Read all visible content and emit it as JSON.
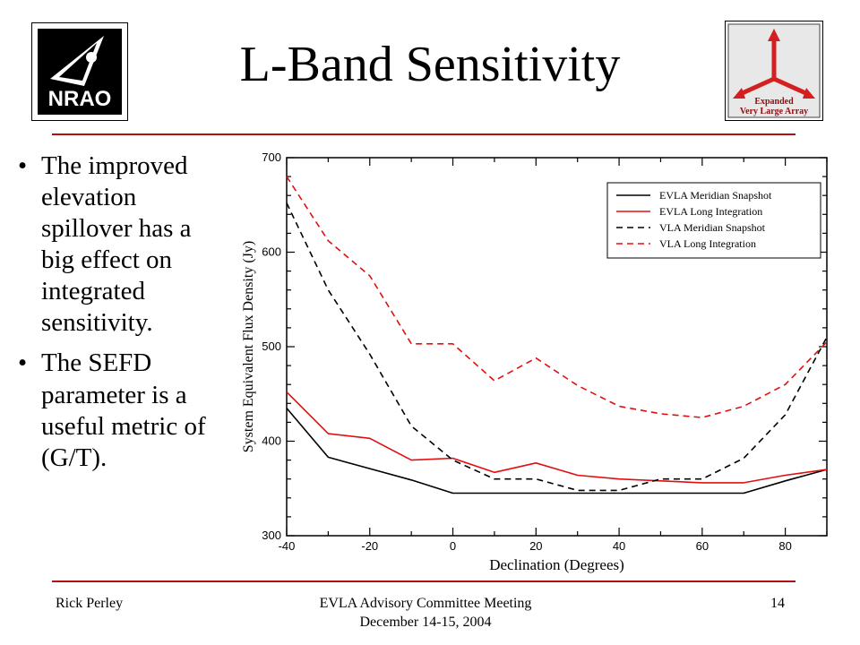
{
  "slide": {
    "title": "L-Band Sensitivity",
    "bullets": [
      "The improved elevation spillover has a big effect on integrated sensitivity.",
      "The SEFD parameter is a useful metric of (G/T)."
    ],
    "bullet_glyph": "•",
    "footer": {
      "author": "Rick Perley",
      "meeting_line1": "EVLA Advisory Committee Meeting",
      "meeting_line2": "December 14-15, 2004",
      "page": "14"
    },
    "logos": {
      "left_text": "NRAO",
      "right_line1": "Expanded",
      "right_line2": "Very Large Array"
    },
    "colors": {
      "rule": "#b01010",
      "black_series": "#000000",
      "red_series": "#e01010"
    }
  },
  "chart_data": {
    "type": "line",
    "title": "",
    "xlabel": "Declination (Degrees)",
    "ylabel": "System Equivalent Flux Density (Jy)",
    "xlim": [
      -40,
      90
    ],
    "ylim": [
      300,
      700
    ],
    "xticks": [
      -40,
      -20,
      0,
      20,
      40,
      60,
      80
    ],
    "yticks": [
      300,
      400,
      500,
      600,
      700
    ],
    "grid": false,
    "legend": "top-right",
    "series": [
      {
        "name": "EVLA Meridian Snapshot",
        "color": "#000000",
        "dash": "solid",
        "x": [
          -40,
          -30,
          -20,
          -10,
          0,
          10,
          20,
          30,
          40,
          50,
          60,
          70,
          80,
          90
        ],
        "y": [
          435,
          383,
          371,
          359,
          345,
          345,
          345,
          345,
          345,
          345,
          345,
          345,
          358,
          370
        ]
      },
      {
        "name": "EVLA Long Integration",
        "color": "#e01010",
        "dash": "solid",
        "x": [
          -40,
          -30,
          -20,
          -10,
          0,
          10,
          20,
          30,
          40,
          50,
          60,
          70,
          80,
          90
        ],
        "y": [
          452,
          408,
          403,
          380,
          382,
          367,
          377,
          364,
          360,
          358,
          356,
          356,
          364,
          370
        ]
      },
      {
        "name": "VLA Meridian Snapshot",
        "color": "#000000",
        "dash": "dashed",
        "x": [
          -40,
          -30,
          -20,
          -10,
          0,
          10,
          20,
          30,
          40,
          50,
          60,
          70,
          80,
          90
        ],
        "y": [
          652,
          560,
          492,
          416,
          380,
          360,
          360,
          348,
          348,
          360,
          360,
          382,
          428,
          510
        ]
      },
      {
        "name": "VLA Long Integration",
        "color": "#e01010",
        "dash": "dashed",
        "x": [
          -40,
          -30,
          -20,
          -10,
          0,
          10,
          20,
          30,
          40,
          50,
          60,
          70,
          80,
          90
        ],
        "y": [
          680,
          612,
          575,
          503,
          503,
          464,
          488,
          459,
          437,
          429,
          425,
          437,
          460,
          505
        ]
      }
    ]
  }
}
